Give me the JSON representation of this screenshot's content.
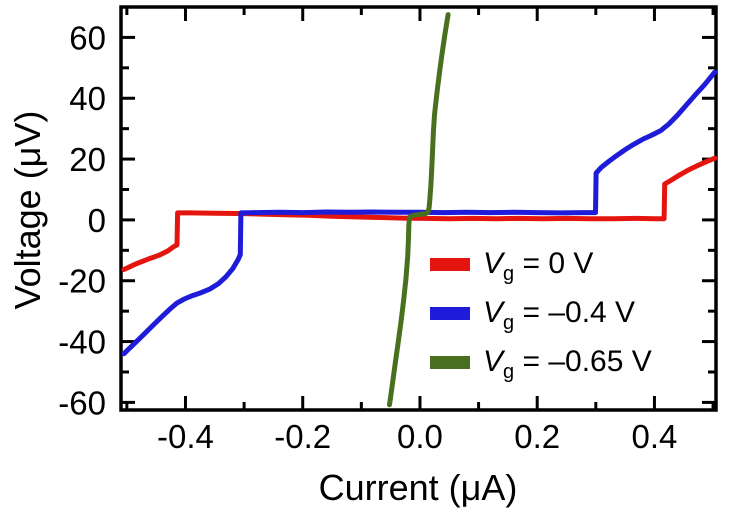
{
  "figure": {
    "background": "#ffffff",
    "axis_color": "#000000",
    "text_color": "#000000"
  },
  "chart_data": {
    "type": "line",
    "title": "",
    "xlabel": "Current (μA)",
    "ylabel": "Voltage (μV)",
    "xlim": [
      -0.51,
      0.505
    ],
    "ylim": [
      -62.5,
      70
    ],
    "x_ticks": [
      -0.4,
      -0.2,
      0.0,
      0.2,
      0.4
    ],
    "x_minor_ticks": [
      -0.5,
      -0.3,
      -0.1,
      0.1,
      0.3,
      0.5
    ],
    "y_ticks": [
      -60,
      -40,
      -20,
      0,
      20,
      40,
      60
    ],
    "y_minor_ticks": [
      -50,
      -30,
      -10,
      10,
      30,
      50
    ],
    "grid": false,
    "legend_position": "inside-lower-right",
    "series": [
      {
        "id": "vg-0",
        "name": "Vg = 0 V",
        "color": "#e4150f",
        "legend": {
          "var": "V",
          "sub": "g",
          "eq": " = 0 V"
        },
        "points": [
          [
            -0.505,
            -16.3
          ],
          [
            -0.485,
            -14.5
          ],
          [
            -0.465,
            -13.0
          ],
          [
            -0.445,
            -11.6
          ],
          [
            -0.43,
            -10.2
          ],
          [
            -0.421,
            -8.9
          ],
          [
            -0.4145,
            -8.2
          ],
          [
            -0.4135,
            2.3
          ],
          [
            -0.39,
            2.3
          ],
          [
            -0.35,
            2.2
          ],
          [
            -0.31,
            2.1
          ],
          [
            -0.27,
            1.9
          ],
          [
            -0.23,
            1.7
          ],
          [
            -0.19,
            1.5
          ],
          [
            -0.15,
            1.2
          ],
          [
            -0.11,
            1.0
          ],
          [
            -0.07,
            0.8
          ],
          [
            -0.03,
            0.6
          ],
          [
            0.01,
            0.5
          ],
          [
            0.05,
            0.4
          ],
          [
            0.09,
            0.5
          ],
          [
            0.13,
            0.4
          ],
          [
            0.17,
            0.5
          ],
          [
            0.21,
            0.4
          ],
          [
            0.25,
            0.5
          ],
          [
            0.29,
            0.4
          ],
          [
            0.33,
            0.4
          ],
          [
            0.37,
            0.5
          ],
          [
            0.4,
            0.4
          ],
          [
            0.4165,
            0.4
          ],
          [
            0.4175,
            11.8
          ],
          [
            0.428,
            13.0
          ],
          [
            0.443,
            14.8
          ],
          [
            0.458,
            16.4
          ],
          [
            0.473,
            17.8
          ],
          [
            0.488,
            19.1
          ],
          [
            0.503,
            20.3
          ]
        ]
      },
      {
        "id": "vg-m0p4",
        "name": "Vg = -0.4 V",
        "color": "#1e1bd9",
        "legend": {
          "var": "V",
          "sub": "g",
          "eq": " = –0.4 V"
        },
        "points": [
          [
            -0.505,
            -44.0
          ],
          [
            -0.49,
            -41.2
          ],
          [
            -0.472,
            -37.8
          ],
          [
            -0.455,
            -34.6
          ],
          [
            -0.44,
            -31.8
          ],
          [
            -0.427,
            -29.4
          ],
          [
            -0.415,
            -27.4
          ],
          [
            -0.402,
            -26.0
          ],
          [
            -0.388,
            -24.9
          ],
          [
            -0.373,
            -23.9
          ],
          [
            -0.358,
            -22.7
          ],
          [
            -0.344,
            -21.0
          ],
          [
            -0.331,
            -18.7
          ],
          [
            -0.319,
            -15.9
          ],
          [
            -0.31,
            -13.0
          ],
          [
            -0.3065,
            -11.4
          ],
          [
            -0.3055,
            2.3
          ],
          [
            -0.28,
            2.4
          ],
          [
            -0.24,
            2.5
          ],
          [
            -0.2,
            2.4
          ],
          [
            -0.16,
            2.6
          ],
          [
            -0.12,
            2.5
          ],
          [
            -0.08,
            2.6
          ],
          [
            -0.04,
            2.5
          ],
          [
            0.0,
            2.5
          ],
          [
            0.04,
            2.4
          ],
          [
            0.08,
            2.5
          ],
          [
            0.12,
            2.4
          ],
          [
            0.16,
            2.5
          ],
          [
            0.2,
            2.4
          ],
          [
            0.24,
            2.3
          ],
          [
            0.28,
            2.4
          ],
          [
            0.2995,
            2.4
          ],
          [
            0.3005,
            15.4
          ],
          [
            0.309,
            17.2
          ],
          [
            0.322,
            19.2
          ],
          [
            0.336,
            21.2
          ],
          [
            0.351,
            23.2
          ],
          [
            0.366,
            25.0
          ],
          [
            0.381,
            26.6
          ],
          [
            0.396,
            27.9
          ],
          [
            0.411,
            29.4
          ],
          [
            0.425,
            31.6
          ],
          [
            0.44,
            34.6
          ],
          [
            0.455,
            37.9
          ],
          [
            0.47,
            41.2
          ],
          [
            0.486,
            44.6
          ],
          [
            0.503,
            48.6
          ]
        ]
      },
      {
        "id": "vg-m0p65",
        "name": "Vg = -0.65 V",
        "color": "#49701e",
        "legend": {
          "var": "V",
          "sub": "g",
          "eq": " = –0.65 V"
        },
        "points": [
          [
            -0.052,
            -60.8
          ],
          [
            -0.047,
            -54.0
          ],
          [
            -0.042,
            -47.0
          ],
          [
            -0.037,
            -40.0
          ],
          [
            -0.032,
            -33.0
          ],
          [
            -0.028,
            -26.5
          ],
          [
            -0.024,
            -19.5
          ],
          [
            -0.021,
            -12.0
          ],
          [
            -0.0195,
            -6.0
          ],
          [
            -0.019,
            -2.0
          ],
          [
            -0.018,
            0.9
          ],
          [
            -0.012,
            1.5
          ],
          [
            -0.004,
            1.7
          ],
          [
            0.004,
            1.9
          ],
          [
            0.01,
            2.1
          ],
          [
            0.0135,
            2.6
          ],
          [
            0.0155,
            4.0
          ],
          [
            0.017,
            7.0
          ],
          [
            0.0185,
            11.0
          ],
          [
            0.02,
            16.5
          ],
          [
            0.0215,
            23.0
          ],
          [
            0.023,
            29.0
          ],
          [
            0.0248,
            34.5
          ],
          [
            0.027,
            38.5
          ],
          [
            0.03,
            43.5
          ],
          [
            0.034,
            49.5
          ],
          [
            0.038,
            55.0
          ],
          [
            0.0425,
            61.0
          ],
          [
            0.048,
            67.5
          ]
        ]
      }
    ]
  }
}
